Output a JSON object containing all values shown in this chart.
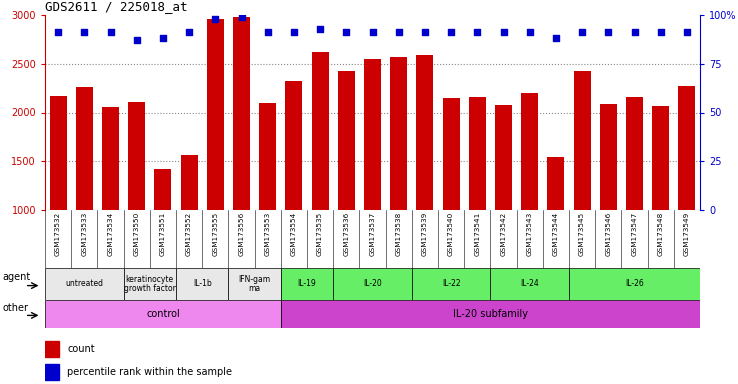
{
  "title": "GDS2611 / 225018_at",
  "samples": [
    "GSM173532",
    "GSM173533",
    "GSM173534",
    "GSM173550",
    "GSM173551",
    "GSM173552",
    "GSM173555",
    "GSM173556",
    "GSM173553",
    "GSM173554",
    "GSM173535",
    "GSM173536",
    "GSM173537",
    "GSM173538",
    "GSM173539",
    "GSM173540",
    "GSM173541",
    "GSM173542",
    "GSM173543",
    "GSM173544",
    "GSM173545",
    "GSM173546",
    "GSM173547",
    "GSM173548",
    "GSM173549"
  ],
  "counts": [
    2170,
    2260,
    2060,
    2110,
    1420,
    1560,
    2960,
    2980,
    2100,
    2320,
    2620,
    2430,
    2550,
    2570,
    2590,
    2150,
    2160,
    2080,
    2200,
    1540,
    2430,
    2090,
    2160,
    2070,
    2270
  ],
  "pct_dots_y": [
    2830,
    2830,
    2830,
    2740,
    2760,
    2830,
    2960,
    2980,
    2830,
    2830,
    2860,
    2830,
    2830,
    2830,
    2830,
    2830,
    2830,
    2830,
    2830,
    2760,
    2830,
    2830,
    2830,
    2830,
    2830
  ],
  "bar_color": "#cc0000",
  "dot_color": "#0000cc",
  "ylim": [
    1000,
    3000
  ],
  "yticks_left": [
    1000,
    1500,
    2000,
    2500,
    3000
  ],
  "yticks_right": [
    0,
    25,
    50,
    75,
    100
  ],
  "agent_groups": [
    {
      "label": "untreated",
      "start": 0,
      "end": 3,
      "color": "#e8e8e8"
    },
    {
      "label": "keratinocyte\ngrowth factor",
      "start": 3,
      "end": 5,
      "color": "#e8e8e8"
    },
    {
      "label": "IL-1b",
      "start": 5,
      "end": 7,
      "color": "#e8e8e8"
    },
    {
      "label": "IFN-gam\nma",
      "start": 7,
      "end": 9,
      "color": "#e8e8e8"
    },
    {
      "label": "IL-19",
      "start": 9,
      "end": 11,
      "color": "#66ee66"
    },
    {
      "label": "IL-20",
      "start": 11,
      "end": 14,
      "color": "#66ee66"
    },
    {
      "label": "IL-22",
      "start": 14,
      "end": 17,
      "color": "#66ee66"
    },
    {
      "label": "IL-24",
      "start": 17,
      "end": 20,
      "color": "#66ee66"
    },
    {
      "label": "IL-26",
      "start": 20,
      "end": 25,
      "color": "#66ee66"
    }
  ],
  "other_groups": [
    {
      "label": "control",
      "start": 0,
      "end": 9,
      "color": "#ee88ee"
    },
    {
      "label": "IL-20 subfamily",
      "start": 9,
      "end": 25,
      "color": "#cc44cc"
    }
  ],
  "grid_color": "#888888",
  "tick_color_left": "#cc0000",
  "tick_color_right": "#0000cc",
  "xticklabel_bg": "#d8d8d8",
  "n_samples": 25
}
